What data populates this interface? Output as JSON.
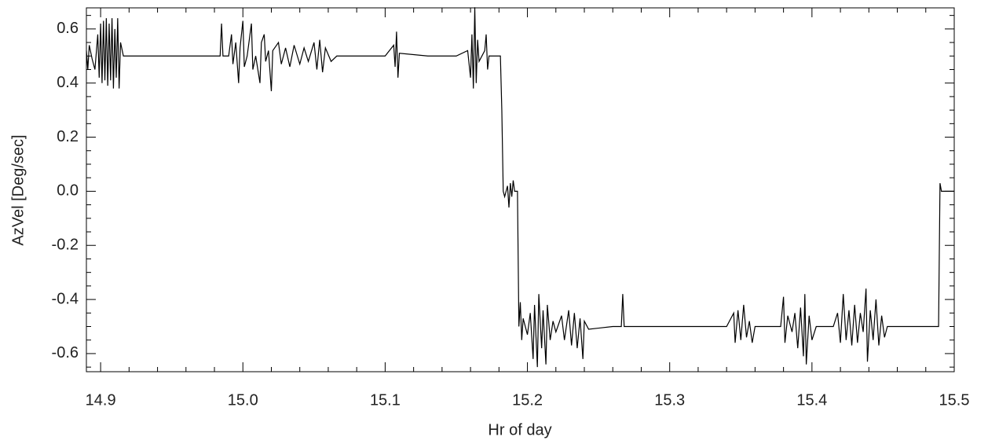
{
  "chart_data": {
    "type": "line",
    "xlabel": "Hr of day",
    "ylabel": "AzVel [Deg/sec]",
    "color": "#000000",
    "xlim": [
      14.89,
      15.5
    ],
    "ylim": [
      -0.667,
      0.678
    ],
    "xticks": [
      14.9,
      {
        "value": 15,
        "label": "15.0"
      },
      15.1,
      15.2,
      15.3,
      15.4,
      15.5
    ],
    "yticks": [
      -0.6,
      -0.4,
      -0.2,
      {
        "value": 0,
        "label": "0.0"
      },
      0.2,
      0.4,
      0.6
    ],
    "minor_xticks": [
      14.92,
      14.94,
      14.96,
      14.98,
      15.02,
      15.04,
      15.06,
      15.08,
      15.12,
      15.14,
      15.16,
      15.18,
      15.22,
      15.24,
      15.26,
      15.28,
      15.32,
      15.34,
      15.36,
      15.38,
      15.42,
      15.44,
      15.46,
      15.48
    ],
    "minor_yticks": [
      -0.65,
      -0.55,
      -0.5,
      -0.45,
      -0.35,
      -0.3,
      -0.25,
      -0.15,
      -0.1,
      -0.05,
      0.05,
      0.1,
      0.15,
      0.25,
      0.3,
      0.35,
      0.45,
      0.5,
      0.55,
      0.65
    ],
    "x": [
      14.89,
      14.891,
      14.892,
      14.894,
      14.896,
      14.898,
      14.899,
      14.9,
      14.901,
      14.902,
      14.903,
      14.904,
      14.905,
      14.906,
      14.907,
      14.908,
      14.909,
      14.91,
      14.911,
      14.912,
      14.913,
      14.914,
      14.916,
      14.93,
      14.95,
      14.97,
      14.984,
      14.985,
      14.986,
      14.99,
      14.992,
      14.993,
      14.995,
      14.997,
      14.998,
      15.0,
      15.001,
      15.003,
      15.006,
      15.007,
      15.009,
      15.012,
      15.013,
      15.015,
      15.016,
      15.018,
      15.02,
      15.021,
      15.025,
      15.027,
      15.03,
      15.033,
      15.036,
      15.04,
      15.043,
      15.046,
      15.05,
      15.052,
      15.054,
      15.056,
      15.058,
      15.062,
      15.066,
      15.08,
      15.1,
      15.106,
      15.107,
      15.108,
      15.109,
      15.11,
      15.13,
      15.15,
      15.158,
      15.16,
      15.161,
      15.162,
      15.163,
      15.164,
      15.165,
      15.166,
      15.17,
      15.171,
      15.172,
      15.173,
      15.181,
      15.182,
      15.183,
      15.184,
      15.186,
      15.187,
      15.188,
      15.189,
      15.19,
      15.191,
      15.193,
      15.194,
      15.195,
      15.196,
      15.197,
      15.2,
      15.202,
      15.204,
      15.205,
      15.207,
      15.208,
      15.21,
      15.211,
      15.213,
      15.214,
      15.216,
      15.218,
      15.22,
      15.224,
      15.226,
      15.229,
      15.231,
      15.233,
      15.235,
      15.237,
      15.239,
      15.24,
      15.243,
      15.26,
      15.266,
      15.267,
      15.268,
      15.3,
      15.34,
      15.345,
      15.346,
      15.348,
      15.35,
      15.352,
      15.354,
      15.356,
      15.358,
      15.36,
      15.378,
      15.38,
      15.381,
      15.383,
      15.386,
      15.388,
      15.39,
      15.392,
      15.394,
      15.395,
      15.396,
      15.398,
      15.4,
      15.403,
      15.415,
      15.418,
      15.42,
      15.422,
      15.424,
      15.426,
      15.428,
      15.43,
      15.432,
      15.434,
      15.436,
      15.438,
      15.439,
      15.441,
      15.443,
      15.445,
      15.447,
      15.449,
      15.451,
      15.453,
      15.47,
      15.489,
      15.49,
      15.491,
      15.5
    ],
    "values": [
      0.52,
      0.45,
      0.54,
      0.49,
      0.45,
      0.58,
      0.42,
      0.62,
      0.4,
      0.63,
      0.41,
      0.64,
      0.39,
      0.62,
      0.41,
      0.64,
      0.38,
      0.6,
      0.42,
      0.64,
      0.38,
      0.55,
      0.5,
      0.5,
      0.5,
      0.5,
      0.5,
      0.62,
      0.5,
      0.5,
      0.58,
      0.47,
      0.55,
      0.4,
      0.53,
      0.63,
      0.46,
      0.5,
      0.62,
      0.45,
      0.5,
      0.4,
      0.55,
      0.58,
      0.48,
      0.52,
      0.37,
      0.52,
      0.55,
      0.47,
      0.53,
      0.46,
      0.54,
      0.47,
      0.53,
      0.48,
      0.55,
      0.45,
      0.56,
      0.44,
      0.53,
      0.48,
      0.5,
      0.5,
      0.5,
      0.54,
      0.46,
      0.59,
      0.42,
      0.51,
      0.5,
      0.5,
      0.52,
      0.42,
      0.58,
      0.38,
      0.68,
      0.4,
      0.56,
      0.48,
      0.52,
      0.58,
      0.45,
      0.5,
      0.5,
      0.3,
      0.0,
      -0.02,
      0.02,
      -0.06,
      0.03,
      -0.02,
      0.04,
      0.0,
      0.0,
      -0.5,
      -0.41,
      -0.55,
      -0.47,
      -0.53,
      -0.45,
      -0.62,
      -0.42,
      -0.65,
      -0.38,
      -0.58,
      -0.44,
      -0.64,
      -0.42,
      -0.55,
      -0.48,
      -0.52,
      -0.46,
      -0.55,
      -0.44,
      -0.57,
      -0.45,
      -0.58,
      -0.47,
      -0.62,
      -0.48,
      -0.51,
      -0.5,
      -0.5,
      -0.38,
      -0.5,
      -0.5,
      -0.5,
      -0.45,
      -0.56,
      -0.44,
      -0.55,
      -0.42,
      -0.54,
      -0.48,
      -0.56,
      -0.5,
      -0.5,
      -0.39,
      -0.56,
      -0.46,
      -0.52,
      -0.45,
      -0.58,
      -0.43,
      -0.61,
      -0.38,
      -0.64,
      -0.46,
      -0.55,
      -0.5,
      -0.5,
      -0.45,
      -0.56,
      -0.38,
      -0.55,
      -0.44,
      -0.57,
      -0.42,
      -0.56,
      -0.45,
      -0.52,
      -0.36,
      -0.63,
      -0.44,
      -0.55,
      -0.4,
      -0.57,
      -0.46,
      -0.54,
      -0.5,
      -0.5,
      -0.5,
      0.03,
      0.0,
      0.0
    ]
  }
}
